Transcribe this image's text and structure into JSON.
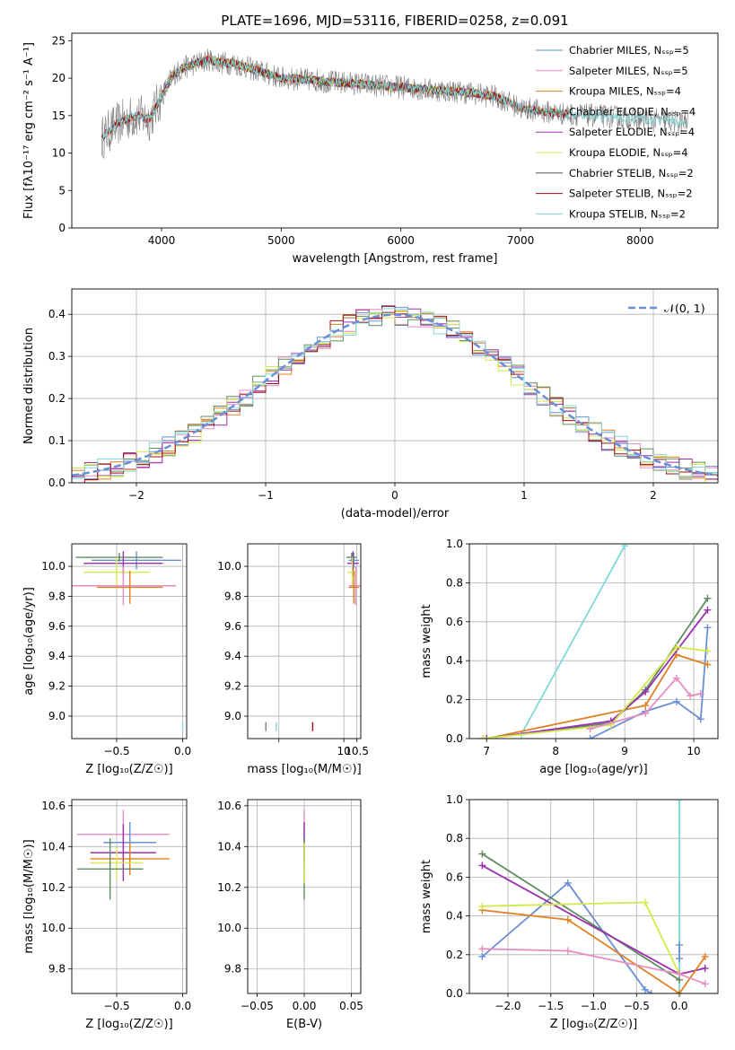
{
  "figure": {
    "title": "PLATE=1696, MJD=53116, FIBERID=0258, z=0.091"
  },
  "chart_data": [
    {
      "id": "spectrum",
      "type": "line",
      "xlabel": "wavelength [Angstrom, rest frame]",
      "ylabel": "Flux [fλ10⁻¹⁷ erg cm⁻² s⁻¹ A⁻¹]",
      "xlim": [
        3250,
        8650
      ],
      "ylim": [
        0,
        26
      ],
      "xticks": [
        4000,
        5000,
        6000,
        7000,
        8000
      ],
      "yticks": [
        0,
        5,
        10,
        15,
        20,
        25
      ],
      "grid": false,
      "legend_position": "top-right",
      "data_color": "#808080",
      "data": {
        "wave": [
          3500,
          3600,
          3700,
          3800,
          3900,
          4000,
          4100,
          4200,
          4300,
          4400,
          4500,
          4600,
          4700,
          4800,
          4900,
          5000,
          5200,
          5400,
          5600,
          5800,
          6000,
          6200,
          6400,
          6600,
          6800,
          7000,
          7200,
          7400,
          7600,
          7800,
          8000,
          8200,
          8400
        ],
        "flux": [
          12,
          13.5,
          14.5,
          15,
          14.5,
          17.5,
          20.5,
          21.5,
          22,
          22.5,
          22,
          22,
          21.5,
          21,
          20.5,
          20,
          19.8,
          19.5,
          19.3,
          19,
          18.8,
          18.5,
          18.3,
          18,
          17.5,
          16,
          15.5,
          15.2,
          15,
          14.8,
          14.5,
          14.3,
          14
        ]
      },
      "models": [
        {
          "name": "Chabrier MILES, N_SSP=5",
          "color": "#6a8fd6",
          "range": [
            3525,
            7400
          ]
        },
        {
          "name": "Salpeter MILES, N_SSP=5",
          "color": "#e58ec0",
          "range": [
            3525,
            7400
          ]
        },
        {
          "name": "Kroupa MILES, N_SSP=4",
          "color": "#e08020",
          "range": [
            3525,
            7400
          ]
        },
        {
          "name": "Chabrier ELODIE, N_SSP=4",
          "color": "#5e8c5e",
          "range": [
            3900,
            6800
          ]
        },
        {
          "name": "Salpeter ELODIE, N_SSP=4",
          "color": "#9b30b0",
          "range": [
            3900,
            6800
          ]
        },
        {
          "name": "Kroupa ELODIE, N_SSP=4",
          "color": "#d4e84a",
          "range": [
            3900,
            6800
          ]
        },
        {
          "name": "Chabrier STELIB, N_SSP=2",
          "color": "#555555",
          "range": [
            3500,
            7400
          ]
        },
        {
          "name": "Salpeter STELIB, N_SSP=2",
          "color": "#a01010",
          "range": [
            3500,
            7400
          ]
        },
        {
          "name": "Kroupa STELIB, N_SSP=2",
          "color": "#80d8d8",
          "range": [
            3500,
            8400
          ]
        }
      ]
    },
    {
      "id": "residuals",
      "type": "line",
      "xlabel": "(data-model)/error",
      "ylabel": "Normed distribution",
      "xlim": [
        -2.5,
        2.5
      ],
      "ylim": [
        0,
        0.46
      ],
      "xticks": [
        -2,
        -1,
        0,
        1,
        2
      ],
      "yticks": [
        0.0,
        0.1,
        0.2,
        0.3,
        0.4
      ],
      "grid": true,
      "legend_position": "top-right",
      "gaussian": {
        "label": "𝒩(0, 1)",
        "color": "#6a8fd6"
      },
      "histogram_colors": [
        "#6a8fd6",
        "#e58ec0",
        "#e08020",
        "#5e8c5e",
        "#9b30b0",
        "#d4e84a",
        "#a01010",
        "#80d8d8"
      ]
    },
    {
      "id": "age-Z",
      "type": "scatter",
      "xlabel": "Z [log₁₀(Z/Z☉)]",
      "ylabel": "age  [log₁₀(age/yr)]",
      "xlim": [
        -0.84,
        0.03
      ],
      "ylim": [
        8.85,
        10.15
      ],
      "xticks": [
        -0.5,
        0.0
      ],
      "xticklabels": [
        "−0.5",
        "0.0"
      ],
      "yticks": [
        9.0,
        9.2,
        9.4,
        9.6,
        9.8,
        10.0
      ],
      "grid": true,
      "points": [
        {
          "x": -0.35,
          "y": 10.04,
          "xe": 0.34,
          "ye": 0.06,
          "color": "#6a8fd6"
        },
        {
          "x": -0.45,
          "y": 10.02,
          "xe": 0.3,
          "ye": 0.08,
          "color": "#9b30b0"
        },
        {
          "x": -0.48,
          "y": 10.06,
          "xe": 0.33,
          "ye": 0.03,
          "color": "#5e8c5e"
        },
        {
          "x": -0.5,
          "y": 9.96,
          "xe": 0.25,
          "ye": 0.1,
          "color": "#d4e84a"
        },
        {
          "x": -0.45,
          "y": 9.87,
          "xe": 0.4,
          "ye": 0.13,
          "color": "#e58ec0"
        },
        {
          "x": -0.4,
          "y": 9.86,
          "xe": 0.25,
          "ye": 0.11,
          "color": "#e08020"
        },
        {
          "x": 0.0,
          "y": 8.93,
          "xe": 0.0,
          "ye": 0.03,
          "color": "#80d8d8"
        }
      ]
    },
    {
      "id": "age-mass",
      "type": "scatter",
      "xlabel": "mass [log₁₀(M/M☉)]",
      "ylabel": "",
      "xlim": [
        6.3,
        10.65
      ],
      "ylim": [
        8.85,
        10.15
      ],
      "xticks": [
        7.5,
        10.0,
        10.5
      ],
      "xticklabels": [
        "",
        "10",
        "10.5"
      ],
      "yticks": [
        9.0,
        9.2,
        9.4,
        9.6,
        9.8,
        10.0
      ],
      "grid": true,
      "points": [
        {
          "x": 10.38,
          "y": 10.04,
          "xe": 0.2,
          "ye": 0.05,
          "color": "#6a8fd6"
        },
        {
          "x": 10.35,
          "y": 10.02,
          "xe": 0.22,
          "ye": 0.08,
          "color": "#9b30b0"
        },
        {
          "x": 10.3,
          "y": 10.06,
          "xe": 0.2,
          "ye": 0.03,
          "color": "#5e8c5e"
        },
        {
          "x": 10.32,
          "y": 9.96,
          "xe": 0.18,
          "ye": 0.1,
          "color": "#d4e84a"
        },
        {
          "x": 10.45,
          "y": 9.87,
          "xe": 0.25,
          "ye": 0.13,
          "color": "#e58ec0"
        },
        {
          "x": 10.38,
          "y": 9.86,
          "xe": 0.2,
          "ye": 0.11,
          "color": "#e08020"
        },
        {
          "x": 7.0,
          "y": 8.93,
          "xe": 0.0,
          "ye": 0.03,
          "color": "#808080"
        },
        {
          "x": 7.4,
          "y": 8.93,
          "xe": 0.0,
          "ye": 0.03,
          "color": "#80d8d8"
        },
        {
          "x": 8.8,
          "y": 8.93,
          "xe": 0.0,
          "ye": 0.03,
          "color": "#a01010"
        }
      ]
    },
    {
      "id": "weight-age",
      "type": "line",
      "xlabel": "age  [log₁₀(age/yr)]",
      "ylabel": "mass weight",
      "xlim": [
        6.75,
        10.35
      ],
      "ylim": [
        0,
        1.0
      ],
      "xticks": [
        7,
        8,
        9,
        10
      ],
      "yticks": [
        0.0,
        0.2,
        0.4,
        0.6,
        0.8,
        1.0
      ],
      "grid": true,
      "series": [
        {
          "color": "#80d8d8",
          "x": [
            7.5,
            9.0
          ],
          "y": [
            0.02,
            0.99
          ]
        },
        {
          "color": "#6a8fd6",
          "x": [
            8.5,
            9.3,
            9.75,
            10.1,
            10.2
          ],
          "y": [
            0.0,
            0.14,
            0.19,
            0.1,
            0.57
          ]
        },
        {
          "color": "#e08020",
          "x": [
            7.0,
            9.3,
            9.75,
            10.2
          ],
          "y": [
            0.0,
            0.17,
            0.43,
            0.38
          ]
        },
        {
          "color": "#5e8c5e",
          "x": [
            6.95,
            8.8,
            9.3,
            10.2
          ],
          "y": [
            0.0,
            0.08,
            0.25,
            0.72
          ]
        },
        {
          "color": "#9b30b0",
          "x": [
            7.0,
            8.8,
            9.3,
            10.2
          ],
          "y": [
            0.0,
            0.09,
            0.24,
            0.66
          ]
        },
        {
          "color": "#d4e84a",
          "x": [
            6.95,
            8.8,
            9.75,
            10.2
          ],
          "y": [
            0.0,
            0.07,
            0.47,
            0.45
          ]
        },
        {
          "color": "#e58ec0",
          "x": [
            8.5,
            9.3,
            9.75,
            9.95,
            10.1
          ],
          "y": [
            0.05,
            0.13,
            0.31,
            0.22,
            0.23
          ]
        }
      ]
    },
    {
      "id": "mass-Z",
      "type": "scatter",
      "xlabel": "Z [log₁₀(Z/Z☉)]",
      "ylabel": "mass [log₁₀(M/M☉)]",
      "xlim": [
        -0.84,
        0.03
      ],
      "ylim": [
        9.68,
        10.63
      ],
      "xticks": [
        -0.5,
        0.0
      ],
      "xticklabels": [
        "−0.5",
        "0.0"
      ],
      "yticks": [
        9.8,
        10.0,
        10.2,
        10.4,
        10.6
      ],
      "grid": true,
      "points": [
        {
          "x": -0.45,
          "y": 10.46,
          "xe": 0.35,
          "ye": 0.12,
          "color": "#e58ec0"
        },
        {
          "x": -0.4,
          "y": 10.42,
          "xe": 0.2,
          "ye": 0.1,
          "color": "#6a8fd6"
        },
        {
          "x": -0.45,
          "y": 10.37,
          "xe": 0.25,
          "ye": 0.14,
          "color": "#9b30b0"
        },
        {
          "x": -0.4,
          "y": 10.34,
          "xe": 0.3,
          "ye": 0.08,
          "color": "#e08020"
        },
        {
          "x": -0.5,
          "y": 10.32,
          "xe": 0.2,
          "ye": 0.08,
          "color": "#d4e84a"
        },
        {
          "x": -0.55,
          "y": 10.29,
          "xe": 0.25,
          "ye": 0.15,
          "color": "#5e8c5e"
        }
      ]
    },
    {
      "id": "mass-EBV",
      "type": "scatter",
      "xlabel": "E(B-V)",
      "ylabel": "",
      "xlim": [
        -0.06,
        0.06
      ],
      "ylim": [
        9.68,
        10.63
      ],
      "xticks": [
        -0.05,
        0.0,
        0.05
      ],
      "xticklabels": [
        "−0.05",
        "0.00",
        "0.05"
      ],
      "yticks": [
        9.8,
        10.0,
        10.2,
        10.4,
        10.6
      ],
      "grid": true,
      "points": [
        {
          "x": 0.0,
          "y": 10.46,
          "xe": 0.0,
          "ye": 0.12,
          "color": "#e58ec0"
        },
        {
          "x": 0.0,
          "y": 10.42,
          "xe": 0.0,
          "ye": 0.1,
          "color": "#9b30b0"
        },
        {
          "x": 0.0,
          "y": 10.29,
          "xe": 0.0,
          "ye": 0.15,
          "color": "#5e8c5e"
        },
        {
          "x": 0.0,
          "y": 10.32,
          "xe": 0.0,
          "ye": 0.1,
          "color": "#d4e84a"
        }
      ]
    },
    {
      "id": "weight-Z",
      "type": "line",
      "xlabel": "Z [log₁₀(Z/Z☉)]",
      "ylabel": "mass weight",
      "xlim": [
        -2.45,
        0.45
      ],
      "ylim": [
        0,
        1.0
      ],
      "xticks": [
        -2.0,
        -1.5,
        -1.0,
        -0.5,
        0.0
      ],
      "xticklabels": [
        "−2.0",
        "−1.5",
        "−1.0",
        "−0.5",
        "0.0"
      ],
      "yticks": [
        0.0,
        0.2,
        0.4,
        0.6,
        0.8,
        1.0
      ],
      "grid": true,
      "series": [
        {
          "color": "#80d8d8",
          "x": [
            0.0,
            0.0
          ],
          "y": [
            0.0,
            1.0
          ]
        },
        {
          "color": "#6a8fd6",
          "x": [
            -2.3,
            -1.3,
            -0.4,
            -0.33
          ],
          "y": [
            0.19,
            0.57,
            0.02,
            0.0
          ]
        },
        {
          "color": "#5e8c5e",
          "x": [
            -2.3,
            0.0
          ],
          "y": [
            0.72,
            0.07
          ]
        },
        {
          "color": "#9b30b0",
          "x": [
            -2.3,
            0.0,
            0.3
          ],
          "y": [
            0.66,
            0.1,
            0.13
          ]
        },
        {
          "color": "#e08020",
          "x": [
            -2.3,
            -1.3,
            0.0,
            0.3
          ],
          "y": [
            0.43,
            0.38,
            0.0,
            0.19
          ]
        },
        {
          "color": "#d4e84a",
          "x": [
            -2.3,
            -0.4,
            0.0
          ],
          "y": [
            0.45,
            0.47,
            0.1
          ]
        },
        {
          "color": "#e58ec0",
          "x": [
            -2.3,
            -1.3,
            0.0,
            0.3
          ],
          "y": [
            0.23,
            0.22,
            0.1,
            0.05
          ]
        },
        {
          "color": "#6a8fd6",
          "x": [
            0.0,
            0.0
          ],
          "y": [
            0.18,
            0.25
          ]
        }
      ]
    }
  ]
}
